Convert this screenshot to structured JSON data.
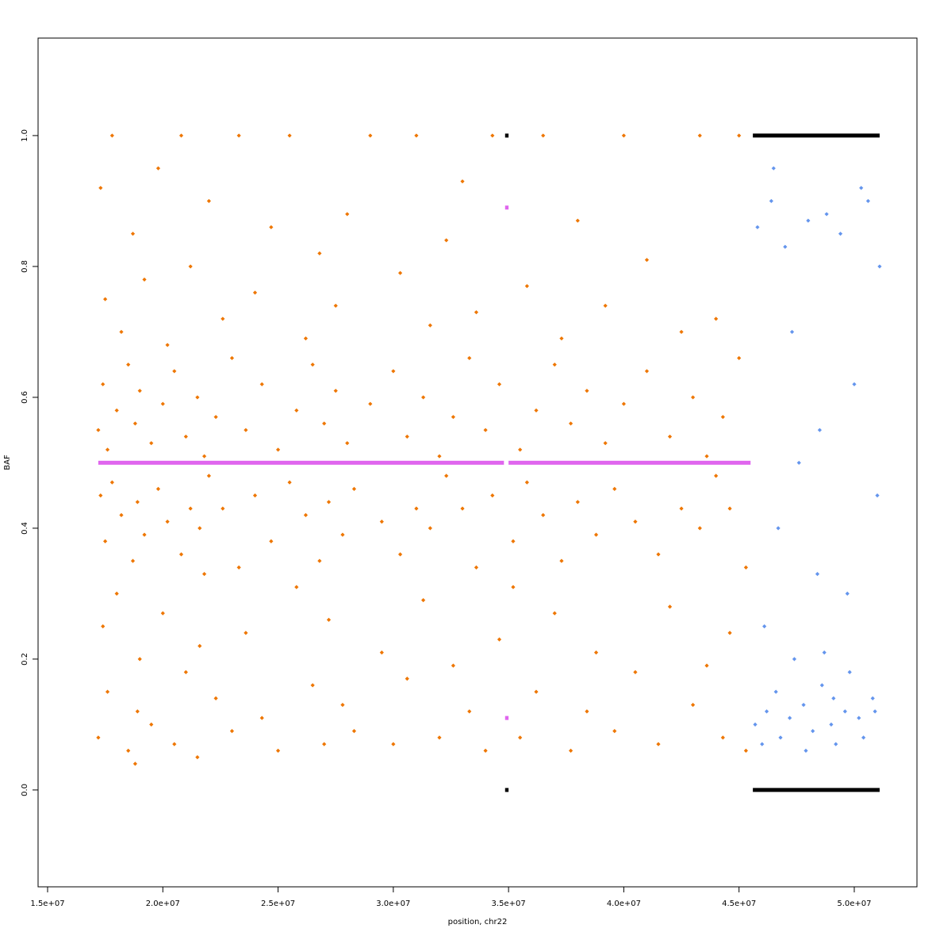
{
  "chart_data": {
    "type": "scatter",
    "x_label": "position, chr22",
    "y_label": "BAF",
    "xlim": [
      14587000,
      52720000
    ],
    "ylim": [
      -0.148,
      1.149
    ],
    "xticks": [
      {
        "value": 15000000,
        "label": "1.5e+07"
      },
      {
        "value": 20000000,
        "label": "2.0e+07"
      },
      {
        "value": 25000000,
        "label": "2.5e+07"
      },
      {
        "value": 30000000,
        "label": "3.0e+07"
      },
      {
        "value": 35000000,
        "label": "3.5e+07"
      },
      {
        "value": 40000000,
        "label": "4.0e+07"
      },
      {
        "value": 45000000,
        "label": "4.5e+07"
      },
      {
        "value": 50000000,
        "label": "5.0e+07"
      }
    ],
    "yticks": [
      {
        "value": 0,
        "label": "0.0"
      },
      0.2,
      0.4,
      0.6,
      0.8,
      {
        "value": 1,
        "label": "1.0"
      }
    ],
    "series": [
      {
        "color": "#ee7600",
        "mode": "points",
        "x": [
          17200000.0,
          17300000.0,
          17400000.0,
          17500000.0,
          17600000.0,
          17800000.0,
          18000000.0,
          18200000.0,
          18500000.0,
          18700000.0,
          18800000.0,
          18900000.0,
          19000000.0,
          19200000.0,
          19500000.0,
          19800000.0,
          20000000.0,
          20200000.0,
          20500000.0,
          20800000.0,
          21000000.0,
          21200000.0,
          21500000.0,
          21600000.0,
          21800000.0,
          22000000.0,
          22300000.0,
          22600000.0,
          23000000.0,
          23300000.0,
          23600000.0,
          24000000.0,
          24300000.0,
          24700000.0,
          25000000.0,
          25500000.0,
          25800000.0,
          26200000.0,
          26500000.0,
          26800000.0,
          27000000.0,
          27200000.0,
          27500000.0,
          27800000.0,
          28000000.0,
          28300000.0,
          29000000.0,
          29500000.0,
          30000000.0,
          30300000.0,
          30600000.0,
          31000000.0,
          31300000.0,
          31600000.0,
          32000000.0,
          32300000.0,
          32600000.0,
          33000000.0,
          33300000.0,
          33600000.0,
          34000000.0,
          34300000.0,
          34600000.0,
          35200000.0,
          35500000.0,
          35800000.0,
          36200000.0,
          36500000.0,
          37000000.0,
          37300000.0,
          37700000.0,
          38000000.0,
          38400000.0,
          38800000.0,
          39200000.0,
          39600000.0,
          40000000.0,
          40500000.0,
          41000000.0,
          41500000.0,
          42000000.0,
          42500000.0,
          43000000.0,
          43300000.0,
          43600000.0,
          44000000.0,
          44300000.0,
          44600000.0,
          45000000.0,
          45300000.0,
          17200000.0,
          17300000.0,
          17400000.0,
          17500000.0,
          17600000.0,
          17800000.0,
          18000000.0,
          18200000.0,
          18500000.0,
          18700000.0,
          18800000.0,
          18900000.0,
          19000000.0,
          19200000.0,
          19500000.0,
          19800000.0,
          20000000.0,
          20200000.0,
          20500000.0,
          20800000.0,
          21000000.0,
          21200000.0,
          21500000.0,
          21600000.0,
          21800000.0,
          22000000.0,
          22300000.0,
          22600000.0,
          23000000.0,
          23300000.0,
          23600000.0,
          24000000.0,
          24300000.0,
          24700000.0,
          25000000.0,
          25500000.0,
          25800000.0,
          26200000.0,
          26500000.0,
          26800000.0,
          27000000.0,
          27200000.0,
          27500000.0,
          27800000.0,
          28000000.0,
          28300000.0,
          29000000.0,
          29500000.0,
          30000000.0,
          30300000.0,
          30600000.0,
          31000000.0,
          31300000.0,
          31600000.0,
          32000000.0,
          32300000.0,
          32600000.0,
          33000000.0,
          33300000.0,
          33600000.0,
          34000000.0,
          34300000.0,
          34600000.0,
          35200000.0,
          35500000.0,
          35800000.0,
          36200000.0,
          36500000.0,
          37000000.0,
          37300000.0,
          37700000.0,
          38000000.0,
          38400000.0,
          38800000.0,
          39200000.0,
          39600000.0,
          40000000.0,
          40500000.0,
          41000000.0,
          41500000.0,
          42000000.0,
          42500000.0,
          43000000.0,
          43300000.0,
          43600000.0,
          44000000.0,
          44300000.0,
          44600000.0,
          45000000.0,
          45300000.0
        ],
        "values": [
          0.55,
          0.45,
          0.62,
          0.38,
          0.52,
          0.47,
          0.58,
          0.42,
          0.65,
          0.35,
          0.56,
          0.44,
          0.61,
          0.39,
          0.53,
          0.46,
          0.59,
          0.41,
          0.64,
          0.36,
          0.54,
          0.43,
          0.6,
          0.4,
          0.51,
          0.48,
          0.57,
          0.43,
          0.66,
          0.34,
          0.55,
          0.45,
          0.62,
          0.38,
          0.52,
          0.47,
          0.58,
          0.42,
          0.65,
          0.35,
          0.56,
          0.44,
          0.61,
          0.39,
          0.53,
          0.46,
          0.59,
          0.41,
          0.64,
          0.36,
          0.54,
          0.43,
          0.6,
          0.4,
          0.51,
          0.48,
          0.57,
          0.43,
          0.66,
          0.34,
          0.55,
          0.45,
          0.62,
          0.38,
          0.52,
          0.47,
          0.58,
          0.42,
          0.65,
          0.35,
          0.56,
          0.44,
          0.61,
          0.39,
          0.53,
          0.46,
          0.59,
          0.41,
          0.64,
          0.36,
          0.54,
          0.43,
          0.6,
          0.4,
          0.51,
          0.48,
          0.57,
          0.43,
          0.66,
          0.34,
          0.08,
          0.92,
          0.25,
          0.75,
          0.15,
          1.0,
          0.3,
          0.7,
          0.06,
          0.85,
          0.04,
          0.12,
          0.2,
          0.78,
          0.1,
          0.95,
          0.27,
          0.68,
          0.07,
          1.0,
          0.18,
          0.8,
          0.05,
          0.22,
          0.33,
          0.9,
          0.14,
          0.72,
          0.09,
          1.0,
          0.24,
          0.76,
          0.11,
          0.86,
          0.06,
          1.0,
          0.31,
          0.69,
          0.16,
          0.82,
          0.07,
          0.26,
          0.74,
          0.13,
          0.88,
          0.09,
          1.0,
          0.21,
          0.07,
          0.79,
          0.17,
          1.0,
          0.29,
          0.71,
          0.08,
          0.84,
          0.19,
          0.93,
          0.12,
          0.73,
          0.06,
          1.0,
          0.23,
          0.31,
          0.08,
          0.77,
          0.15,
          1.0,
          0.27,
          0.69,
          0.06,
          0.87,
          0.12,
          0.21,
          0.74,
          0.09,
          1.0,
          0.18,
          0.81,
          0.07,
          0.28,
          0.7,
          0.13,
          1.0,
          0.19,
          0.72,
          0.08,
          0.24,
          1.0,
          0.06
        ]
      },
      {
        "color": "#6495ed",
        "mode": "points",
        "x": [
          45700000.0,
          45800000.0,
          46000000.0,
          46200000.0,
          46400000.0,
          46600000.0,
          46800000.0,
          47000000.0,
          47200000.0,
          47400000.0,
          47600000.0,
          47800000.0,
          48000000.0,
          48200000.0,
          48400000.0,
          48600000.0,
          48800000.0,
          49000000.0,
          49200000.0,
          49400000.0,
          49600000.0,
          49800000.0,
          50000000.0,
          50200000.0,
          50400000.0,
          50600000.0,
          50800000.0,
          51000000.0,
          51100000.0,
          46100000.0,
          46700000.0,
          47300000.0,
          47900000.0,
          48500000.0,
          49100000.0,
          49700000.0,
          50300000.0,
          50900000.0,
          46500000.0,
          48700000.0
        ],
        "values": [
          0.1,
          0.86,
          0.07,
          0.12,
          0.9,
          0.15,
          0.08,
          0.83,
          0.11,
          0.2,
          0.5,
          0.13,
          0.87,
          0.09,
          0.33,
          0.16,
          0.88,
          0.1,
          0.07,
          0.85,
          0.12,
          0.18,
          0.62,
          0.11,
          0.08,
          0.9,
          0.14,
          0.45,
          0.8,
          0.25,
          0.4,
          0.7,
          0.06,
          0.55,
          0.14,
          0.3,
          0.92,
          0.12,
          0.95,
          0.21
        ]
      },
      {
        "color": "#e066ee",
        "mode": "line",
        "x": [
          17200000.0,
          20000000.0,
          25000000.0,
          30000000.0,
          34800000.0,
          null,
          35000000.0,
          40000000.0,
          45500000.0
        ],
        "values": [
          0.5,
          0.5,
          0.5,
          0.5,
          0.5,
          null,
          0.5,
          0.5,
          0.5
        ]
      },
      {
        "color": "#e066ee",
        "mode": "line",
        "x": [
          34850000.0,
          35000000.0
        ],
        "values": [
          0.89,
          0.89
        ]
      },
      {
        "color": "#e066ee",
        "mode": "line",
        "x": [
          34850000.0,
          35000000.0
        ],
        "values": [
          0.11,
          0.11
        ]
      },
      {
        "color": "#000000",
        "mode": "line",
        "x": [
          45600000.0,
          51100000.0
        ],
        "values": [
          1,
          1
        ]
      },
      {
        "color": "#000000",
        "mode": "line",
        "x": [
          45600000.0,
          51100000.0
        ],
        "values": [
          0,
          0
        ]
      },
      {
        "color": "#000000",
        "mode": "line",
        "x": [
          34850000.0,
          35000000.0
        ],
        "values": [
          1,
          1
        ]
      },
      {
        "color": "#000000",
        "mode": "line",
        "x": [
          34850000.0,
          35000000.0
        ],
        "values": [
          0,
          0
        ]
      }
    ]
  }
}
